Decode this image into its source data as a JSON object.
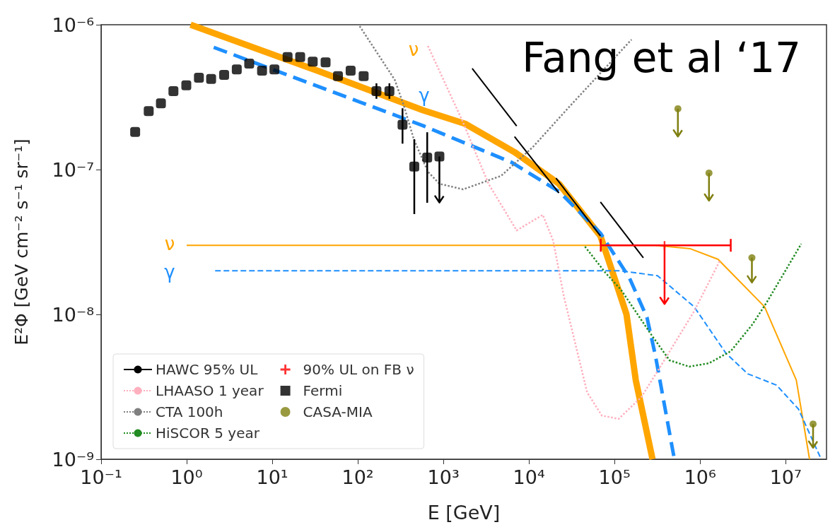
{
  "chart_data": {
    "type": "line",
    "xlabel": "E [GeV]",
    "ylabel": "E²Φ [GeV cm⁻² s⁻¹ sr⁻¹]",
    "log": "xy",
    "legend": "bottom left",
    "xlim": [
      0.1,
      30000000
    ],
    "ylim": [
      1e-09,
      1e-06
    ],
    "xticks": [
      {
        "value": 0.1,
        "label": "10⁻¹"
      },
      {
        "value": 1,
        "label": "10⁰"
      },
      {
        "value": 10,
        "label": "10¹"
      },
      {
        "value": 100,
        "label": "10²"
      },
      {
        "value": 1000,
        "label": "10³"
      },
      {
        "value": 10000,
        "label": "10⁴"
      },
      {
        "value": 100000,
        "label": "10⁵"
      },
      {
        "value": 1000000,
        "label": "10⁶"
      },
      {
        "value": 10000000,
        "label": "10⁷"
      }
    ],
    "yticks": [
      {
        "value": 1e-09,
        "label": "10⁻⁹"
      },
      {
        "value": 1e-08,
        "label": "10⁻⁸"
      },
      {
        "value": 1e-07,
        "label": "10⁻⁷"
      },
      {
        "value": 1e-06,
        "label": "10⁻⁶"
      }
    ],
    "annotations": [
      "Fang et al ‘17",
      "ν",
      "γ",
      "ν",
      "γ"
    ],
    "series": [
      {
        "color": "#ffa500",
        "line_style": "solid",
        "marker": "none",
        "x": [
          1.11,
          33.6,
          577,
          1800,
          6780,
          22400,
          68400,
          104000,
          138000,
          177000,
          278000
        ],
        "values": [
          1e-06,
          4.82e-07,
          2.57e-07,
          2.07e-07,
          1.32e-07,
          7.98e-08,
          3.48e-08,
          1.66e-08,
          1e-08,
          3.52e-09,
          1e-09
        ]
      },
      {
        "color": "#1e8fff",
        "line_style": "dashed",
        "marker": "none",
        "x": [
          2.07,
          577,
          6290,
          22400,
          68400,
          149000,
          239000,
          300000,
          500000
        ],
        "values": [
          6.98e-07,
          2.01e-07,
          1.12e-07,
          7.06e-08,
          3.64e-08,
          1.79e-08,
          9.55e-09,
          5.21e-09,
          1e-09
        ]
      },
      {
        "color": "#ffa500",
        "line_style": "solid",
        "marker": "none",
        "x": [
          1,
          300000,
          770000,
          1620000,
          5660000,
          13300000,
          19000000
        ],
        "values": [
          3e-08,
          3e-08,
          2.84e-08,
          2.4e-08,
          1.13e-08,
          3.52e-09,
          1e-09
        ]
      },
      {
        "color": "#1e8fff",
        "line_style": "dashed",
        "marker": "none",
        "x": [
          2.15,
          116000,
          318000,
          850000,
          2000000,
          3600000,
          7800000,
          14100000,
          26000000
        ],
        "values": [
          2e-08,
          2e-08,
          1.85e-08,
          1.13e-08,
          5.4e-09,
          3.89e-09,
          3.25e-09,
          2.22e-09,
          1e-09
        ]
      },
      {
        "name": "HAWC 95% UL",
        "color": "#000000",
        "line_style": "solid",
        "marker": "none",
        "x": [
          2170,
          7180,
          null,
          6780,
          22400,
          null,
          20700,
          68400,
          null,
          68400,
          217000
        ],
        "values": [
          4.99e-07,
          2e-07,
          null,
          1.69e-07,
          6.9e-08,
          null,
          8.73e-08,
          3.48e-08,
          null,
          5.97e-08,
          2.46e-08
        ]
      },
      {
        "name": "LHAASO 1 year",
        "color": "#ffb0be",
        "line_style": "dotted",
        "marker": "none",
        "x": [
          659,
          1667,
          3365,
          7180,
          14500,
          19200,
          25500,
          47800,
          71100,
          112000,
          206000,
          363000,
          850000,
          1720000
        ],
        "values": [
          7.14e-07,
          2.17e-07,
          7.98e-08,
          3.8e-08,
          4.87e-08,
          3.22e-08,
          1.34e-08,
          2.9e-09,
          2e-09,
          1.9e-09,
          2.69e-09,
          4.6e-09,
          1.05e-08,
          2.38e-08
        ]
      },
      {
        "name": "CTA 100h",
        "color": "#808080",
        "line_style": "dotted",
        "marker": "none",
        "x": [
          105,
          270,
          346,
          451,
          659,
          898,
          1700,
          4730,
          11100,
          29200,
          158000
        ],
        "values": [
          9.78e-07,
          4.17e-07,
          2.75e-07,
          1.62e-07,
          9.67e-08,
          7.98e-08,
          7.3e-08,
          9.05e-08,
          1.43e-07,
          2.69e-07,
          7.9e-07
        ]
      },
      {
        "name": "HiSCOR 5 year",
        "color": "#228b22",
        "line_style": "dotted",
        "marker": "none",
        "x": [
          45100,
          78200,
          119000,
          263000,
          439000,
          745000,
          1270000,
          2280000,
          4100000,
          6000000,
          15200000
        ],
        "values": [
          2.94e-08,
          1.94e-08,
          1.48e-08,
          7.38e-09,
          4.82e-09,
          4.36e-09,
          4.6e-09,
          5.57e-09,
          8.55e-09,
          1.21e-08,
          3.07e-08
        ]
      },
      {
        "type": "scatter",
        "name": "90% UL on FB ν",
        "color": "#ff0000",
        "marker": "cross",
        "x": [
          384000
        ],
        "values": [
          3e-08
        ],
        "errors": [
          [
            1.18e-08,
            3e-08
          ]
        ],
        "xerrors": [
          [
            69000,
            2280000
          ]
        ]
      },
      {
        "type": "scatter",
        "name": "Fermi",
        "color": "#000000",
        "marker": "square",
        "x": [
          0.25,
          0.36,
          0.5,
          0.7,
          0.99,
          1.39,
          1.93,
          2.74,
          3.85,
          5.38,
          7.6,
          10.6,
          15.1,
          21.2,
          29.7,
          42,
          58.6,
          82.4,
          117,
          165,
          234,
          333,
          457,
          647,
          898
        ],
        "values": [
          1.82e-07,
          2.53e-07,
          2.87e-07,
          3.48e-07,
          3.82e-07,
          4.31e-07,
          4.22e-07,
          4.5e-07,
          4.91e-07,
          5.39e-07,
          4.82e-07,
          4.91e-07,
          5.98e-07,
          5.98e-07,
          5.56e-07,
          5.5e-07,
          4.42e-07,
          4.82e-07,
          4.42e-07,
          3.48e-07,
          3.48e-07,
          2.04e-07,
          1.05e-07,
          1.21e-07,
          1.23e-07
        ],
        "errors": [
          null,
          null,
          null,
          null,
          null,
          null,
          null,
          null,
          null,
          null,
          null,
          null,
          null,
          null,
          null,
          null,
          null,
          null,
          null,
          [
            3.08e-07,
            3.94e-07
          ],
          [
            3.08e-07,
            3.94e-07
          ],
          [
            1.51e-07,
            2.65e-07
          ],
          [
            4.93e-08,
            1.62e-07
          ],
          [
            5.9e-08,
            1.81e-07
          ],
          [
            5.92e-08,
            1.23e-07
          ]
        ]
      },
      {
        "type": "scatter",
        "name": "CASA-MIA",
        "color": "#7f7f10",
        "marker": "circle",
        "x": [
          550000,
          1270000,
          4030000,
          20900000
        ],
        "values": [
          2.63e-07,
          9.46e-08,
          2.46e-08,
          1.75e-09
        ],
        "errors": [
          [
            1.69e-07,
            2.63e-07
          ],
          [
            6.1e-08,
            9.46e-08
          ],
          [
            1.66e-08,
            2.46e-08
          ],
          [
            1.2e-09,
            1.75e-09
          ]
        ]
      }
    ]
  }
}
